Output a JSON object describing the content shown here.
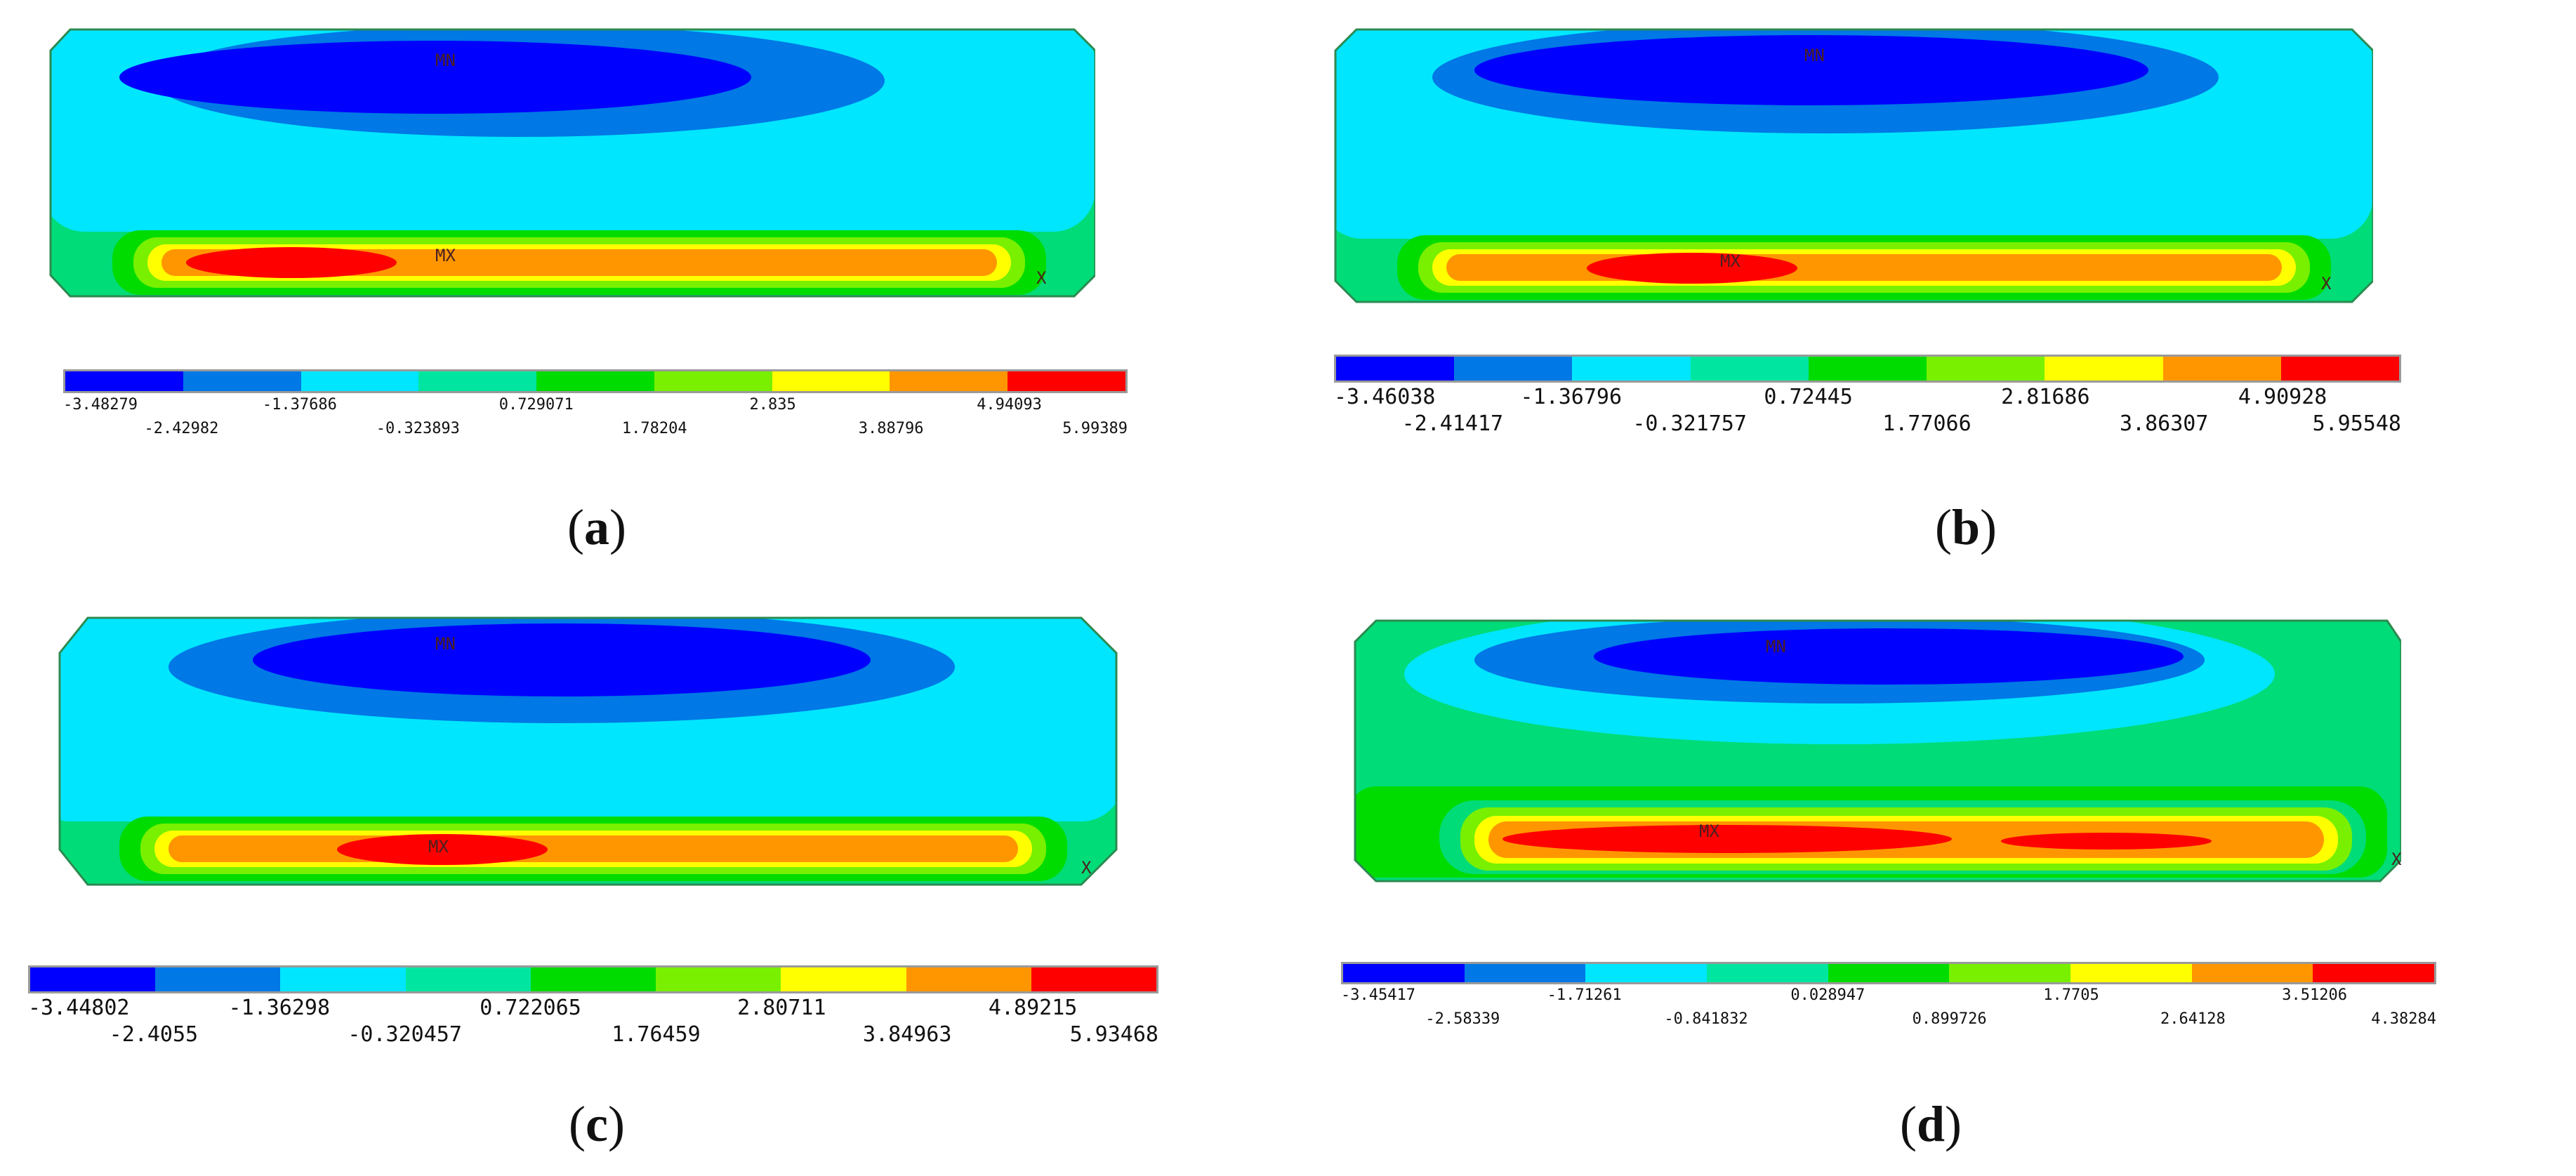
{
  "palette": [
    "#0000ff",
    "#0078e6",
    "#00e6ff",
    "#00e6a0",
    "#00dc00",
    "#78f000",
    "#ffff00",
    "#ff9600",
    "#ff0000"
  ],
  "panels": [
    {
      "id": "a",
      "caption_open": "(",
      "caption_letter": "a",
      "caption_close": ")",
      "min_tag": "MN",
      "max_tag": "MX",
      "axis_tag": "X",
      "ticks": [
        "-3.48279",
        "-2.42982",
        "-1.37686",
        "-0.323893",
        "0.729071",
        "1.78204",
        "2.835",
        "3.88796",
        "4.94093",
        "5.99389"
      ]
    },
    {
      "id": "b",
      "caption_open": "(",
      "caption_letter": "b",
      "caption_close": ")",
      "min_tag": "MN",
      "max_tag": "MX",
      "axis_tag": "X",
      "ticks": [
        "-3.46038",
        "-2.41417",
        "-1.36796",
        "-0.321757",
        "0.72445",
        "1.77066",
        "2.81686",
        "3.86307",
        "4.90928",
        "5.95548"
      ]
    },
    {
      "id": "c",
      "caption_open": "(",
      "caption_letter": "c",
      "caption_close": ")",
      "min_tag": "MN",
      "max_tag": "MX",
      "axis_tag": "X",
      "ticks": [
        "-3.44802",
        "-2.4055",
        "-1.36298",
        "-0.320457",
        "0.722065",
        "1.76459",
        "2.80711",
        "3.84963",
        "4.89215",
        "5.93468"
      ]
    },
    {
      "id": "d",
      "caption_open": "(",
      "caption_letter": "d",
      "caption_close": ")",
      "min_tag": "MN",
      "max_tag": "MX",
      "axis_tag": "X",
      "ticks": [
        "-3.45417",
        "-2.58339",
        "-1.71261",
        "-0.841832",
        "0.028947",
        "0.899726",
        "1.7705",
        "2.64128",
        "3.51206",
        "4.38284"
      ]
    }
  ]
}
